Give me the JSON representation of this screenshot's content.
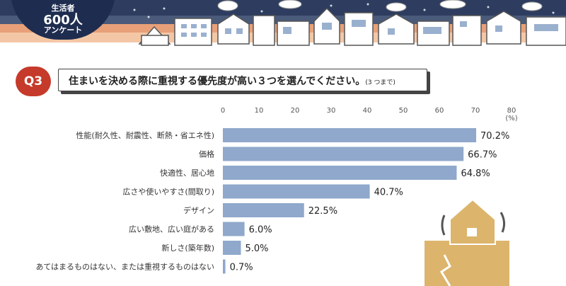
{
  "badge": {
    "line1": "生活者",
    "line2": "600人",
    "line3": "アンケート"
  },
  "question": {
    "number": "Q3",
    "text": "住まいを決める際に重視する優先度が高い３つを選んでください。",
    "note": "(3 つまで)"
  },
  "colors": {
    "bar": "#8fa8cb",
    "accent": "#c53a2a",
    "navy": "#1e2d4f",
    "house": "#dcb46c"
  },
  "chart_data": {
    "type": "bar",
    "orientation": "horizontal",
    "categories": [
      "性能(耐久性、耐震性、断熱・省エネ性)",
      "価格",
      "快適性、居心地",
      "広さや使いやすさ(間取り)",
      "デザイン",
      "広い敷地、広い庭がある",
      "新しさ(築年数)",
      "あてはまるものはない、または重視するものはない"
    ],
    "values": [
      70.2,
      66.7,
      64.8,
      40.7,
      22.5,
      6.0,
      5.0,
      0.7
    ],
    "value_labels": [
      "70.2%",
      "66.7%",
      "64.8%",
      "40.7%",
      "22.5%",
      "6.0%",
      "5.0%",
      "0.7%"
    ],
    "xlim": [
      0,
      80
    ],
    "ticks": [
      0,
      10,
      20,
      30,
      40,
      50,
      60,
      70,
      80
    ],
    "unit_label": "(%)",
    "grid": false
  }
}
